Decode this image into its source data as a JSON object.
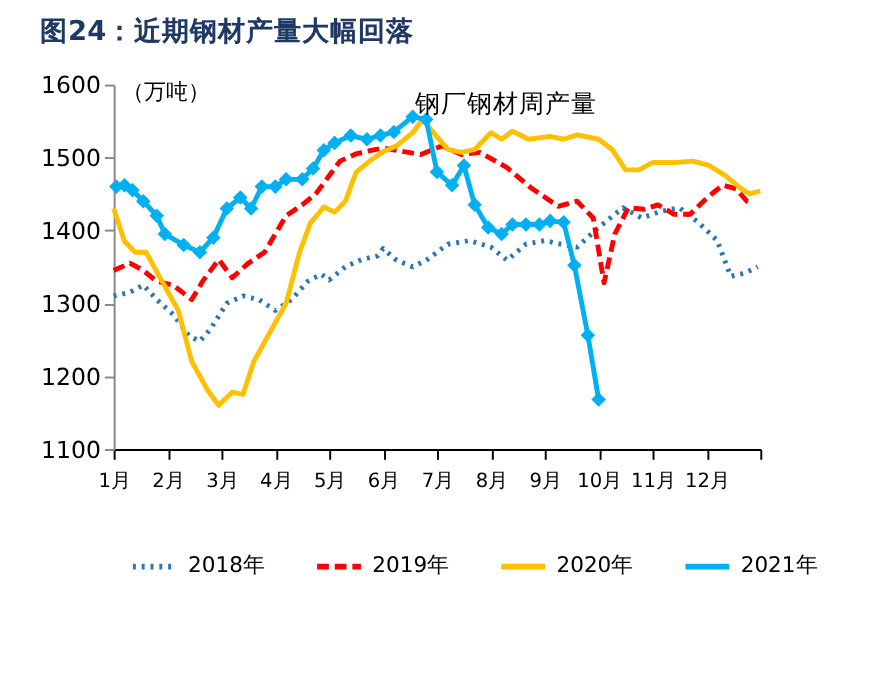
{
  "chart_data": {
    "type": "line",
    "title": "图24：近期钢材产量大幅回落",
    "subtitle": "钢厂钢材周产量",
    "ylabel": "（万吨）",
    "xlim": [
      1,
      13
    ],
    "xticks": [
      {
        "value": 1,
        "label": "1月"
      },
      {
        "value": 2,
        "label": "2月"
      },
      {
        "value": 3,
        "label": "3月"
      },
      {
        "value": 4,
        "label": "4月"
      },
      {
        "value": 5,
        "label": "5月"
      },
      {
        "value": 6,
        "label": "6月"
      },
      {
        "value": 7,
        "label": "7月"
      },
      {
        "value": 8,
        "label": "8月"
      },
      {
        "value": 9,
        "label": "9月"
      },
      {
        "value": 10,
        "label": "10月"
      },
      {
        "value": 11,
        "label": "11月"
      },
      {
        "value": 12,
        "label": "12月"
      },
      {
        "value": 13,
        "label": null
      }
    ],
    "ylim": [
      1100,
      1600
    ],
    "yticks": [
      1100,
      1200,
      1300,
      1400,
      1500,
      1600
    ],
    "grid": false,
    "legend": "bottom",
    "series": [
      {
        "name": "2018年",
        "color": "#2e75b6",
        "line_style": "dotted",
        "marker": "none",
        "x": [
          1.0,
          1.3,
          1.55,
          1.8,
          2.1,
          2.4,
          2.6,
          2.8,
          3.1,
          3.4,
          3.7,
          4.0,
          4.3,
          4.6,
          4.85,
          5.0,
          5.3,
          5.6,
          5.9,
          6.0,
          6.25,
          6.55,
          6.8,
          7.2,
          7.6,
          8.0,
          8.3,
          8.65,
          9.0,
          9.3,
          9.6,
          10.0,
          10.45,
          10.8,
          11.15,
          11.5,
          11.85,
          12.2,
          12.45,
          12.7,
          12.95
        ],
        "values": [
          1310,
          1315,
          1325,
          1305,
          1285,
          1255,
          1248,
          1265,
          1300,
          1310,
          1305,
          1290,
          1305,
          1330,
          1340,
          1332,
          1350,
          1360,
          1365,
          1375,
          1359,
          1350,
          1359,
          1381,
          1386,
          1377,
          1359,
          1381,
          1386,
          1381,
          1377,
          1404,
          1431,
          1417,
          1426,
          1431,
          1411,
          1386,
          1337,
          1341,
          1350
        ]
      },
      {
        "name": "2019年",
        "color": "#ff0000",
        "line_style": "dashed",
        "marker": "none",
        "x": [
          1.0,
          1.3,
          1.55,
          1.8,
          2.1,
          2.45,
          2.65,
          2.95,
          3.2,
          3.5,
          3.8,
          4.0,
          4.2,
          4.5,
          4.75,
          5.0,
          5.2,
          5.5,
          5.8,
          6.0,
          6.7,
          7.1,
          7.45,
          7.8,
          8.3,
          8.75,
          9.25,
          9.6,
          9.9,
          10.1,
          10.3,
          10.55,
          10.85,
          11.1,
          11.4,
          11.7,
          12.0,
          12.3,
          12.55,
          12.75,
          12.85
        ],
        "values": [
          1345,
          1355,
          1345,
          1330,
          1325,
          1305,
          1330,
          1360,
          1335,
          1355,
          1370,
          1395,
          1420,
          1435,
          1450,
          1475,
          1495,
          1505,
          1510,
          1513,
          1504,
          1516,
          1504,
          1507,
          1486,
          1458,
          1433,
          1440,
          1417,
          1328,
          1395,
          1431,
          1429,
          1435,
          1422,
          1422,
          1444,
          1462,
          1457,
          1440,
          1437
        ]
      },
      {
        "name": "2020年",
        "color": "#ffc000",
        "line_style": "solid",
        "marker": "none",
        "x": [
          1.0,
          1.2,
          1.4,
          1.6,
          1.9,
          2.2,
          2.45,
          2.75,
          2.95,
          3.2,
          3.4,
          3.6,
          3.9,
          4.2,
          4.45,
          4.65,
          4.9,
          5.1,
          5.3,
          5.5,
          5.75,
          6.0,
          6.25,
          6.55,
          6.73,
          7.2,
          7.45,
          7.7,
          8.0,
          8.2,
          8.4,
          8.7,
          9.1,
          9.35,
          9.6,
          10.0,
          10.25,
          10.5,
          10.75,
          11.0,
          11.4,
          11.75,
          12.05,
          12.35,
          12.65,
          12.8,
          13.0
        ],
        "values": [
          1430,
          1385,
          1370,
          1370,
          1330,
          1290,
          1220,
          1180,
          1160,
          1178,
          1175,
          1220,
          1260,
          1300,
          1370,
          1410,
          1432,
          1425,
          1440,
          1480,
          1495,
          1508,
          1516,
          1534,
          1552,
          1511,
          1507,
          1511,
          1534,
          1525,
          1536,
          1525,
          1529,
          1525,
          1531,
          1525,
          1511,
          1483,
          1483,
          1493,
          1493,
          1495,
          1489,
          1475,
          1457,
          1450,
          1454
        ]
      },
      {
        "name": "2021年",
        "color": "#00b0f0",
        "line_style": "solid",
        "marker": "diamond",
        "x": [
          1.05,
          1.2,
          1.35,
          1.55,
          1.8,
          1.95,
          2.3,
          2.6,
          2.85,
          3.1,
          3.35,
          3.55,
          3.75,
          4.0,
          4.2,
          4.5,
          4.7,
          4.9,
          5.1,
          5.4,
          5.7,
          5.95,
          6.2,
          6.55,
          6.8,
          7.0,
          7.28,
          7.5,
          7.7,
          7.95,
          8.2,
          8.4,
          8.65,
          8.9,
          9.1,
          9.35,
          9.55,
          9.8,
          10.0
        ],
        "values": [
          1460,
          1462,
          1455,
          1440,
          1420,
          1395,
          1380,
          1370,
          1390,
          1430,
          1445,
          1430,
          1460,
          1460,
          1470,
          1470,
          1485,
          1510,
          1520,
          1530,
          1525,
          1530,
          1535,
          1556,
          1552,
          1480,
          1462,
          1489,
          1435,
          1404,
          1395,
          1408,
          1408,
          1408,
          1413,
          1411,
          1352,
          1256,
          1168
        ]
      }
    ]
  }
}
